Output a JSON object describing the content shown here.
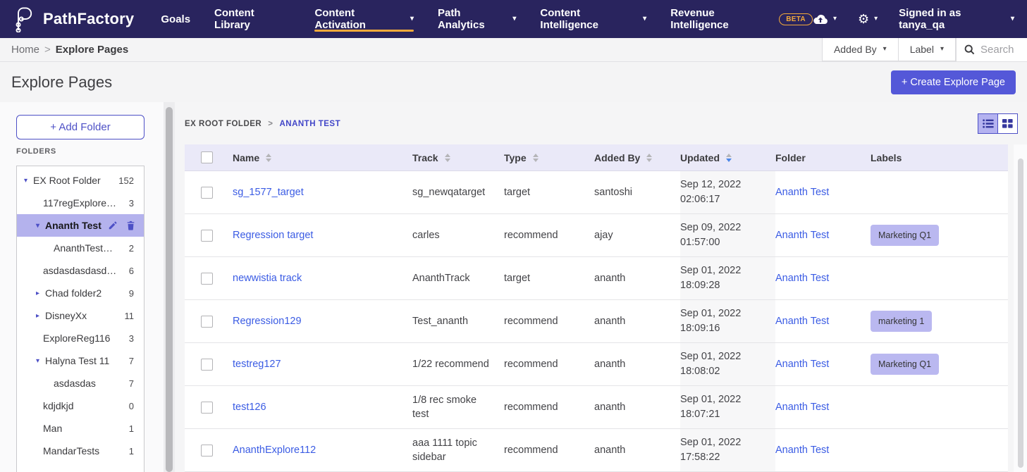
{
  "navbar": {
    "brand": "PathFactory",
    "items": [
      {
        "label": "Goals",
        "caret": false,
        "active": false,
        "badge": null
      },
      {
        "label": "Content Library",
        "caret": false,
        "active": false,
        "badge": null
      },
      {
        "label": "Content Activation",
        "caret": true,
        "active": true,
        "badge": null
      },
      {
        "label": "Path Analytics",
        "caret": true,
        "active": false,
        "badge": null
      },
      {
        "label": "Content Intelligence",
        "caret": true,
        "active": false,
        "badge": null
      },
      {
        "label": "Revenue Intelligence",
        "caret": false,
        "active": false,
        "badge": "BETA"
      }
    ],
    "icons": [
      "cloud-upload-icon",
      "gear-icon"
    ],
    "signed_in": "Signed in as tanya_qa"
  },
  "breadcrumb_bar": {
    "home": "Home",
    "separator": ">",
    "current": "Explore Pages",
    "filters": {
      "added_by": "Added By",
      "label": "Label"
    },
    "search_placeholder": "Search"
  },
  "page_header": {
    "title": "Explore Pages",
    "create_button": "+ Create Explore Page"
  },
  "sidebar": {
    "add_folder": "+ Add Folder",
    "section_label": "FOLDERS",
    "folders": [
      {
        "label": "EX Root Folder",
        "count": "152",
        "level": 1,
        "arrow": "down",
        "selected": false
      },
      {
        "label": "117regExplore…",
        "count": "3",
        "level": 2,
        "arrow": null,
        "selected": false
      },
      {
        "label": "Ananth Test",
        "count": "",
        "level": 2,
        "arrow": "down",
        "selected": true
      },
      {
        "label": "AnanthTest…",
        "count": "2",
        "level": 3,
        "arrow": null,
        "selected": false
      },
      {
        "label": "asdasdasdasd…",
        "count": "6",
        "level": 2,
        "arrow": null,
        "selected": false
      },
      {
        "label": "Chad folder2",
        "count": "9",
        "level": 2,
        "arrow": "right",
        "selected": false
      },
      {
        "label": "DisneyXx",
        "count": "11",
        "level": 2,
        "arrow": "right",
        "selected": false
      },
      {
        "label": "ExploreReg116",
        "count": "3",
        "level": 2,
        "arrow": null,
        "selected": false
      },
      {
        "label": "Halyna Test 11",
        "count": "7",
        "level": 2,
        "arrow": "down",
        "selected": false
      },
      {
        "label": "asdasdas",
        "count": "7",
        "level": 3,
        "arrow": null,
        "selected": false
      },
      {
        "label": "kdjdkjd",
        "count": "0",
        "level": 2,
        "arrow": null,
        "selected": false
      },
      {
        "label": "Man",
        "count": "1",
        "level": 2,
        "arrow": null,
        "selected": false
      },
      {
        "label": "MandarTests",
        "count": "1",
        "level": 2,
        "arrow": null,
        "selected": false
      }
    ]
  },
  "main": {
    "crumbs": {
      "root": "EX ROOT FOLDER",
      "separator": ">",
      "current": "ANANTH TEST"
    },
    "view_toggle": {
      "list_active": true,
      "grid_active": false
    },
    "table": {
      "columns": [
        {
          "label": "Name",
          "sortable": true,
          "sort": null
        },
        {
          "label": "Track",
          "sortable": true,
          "sort": null
        },
        {
          "label": "Type",
          "sortable": true,
          "sort": null
        },
        {
          "label": "Added By",
          "sortable": true,
          "sort": null
        },
        {
          "label": "Updated",
          "sortable": true,
          "sort": "desc"
        },
        {
          "label": "Folder",
          "sortable": false,
          "sort": null
        },
        {
          "label": "Labels",
          "sortable": false,
          "sort": null
        }
      ],
      "rows": [
        {
          "name": "sg_1577_target",
          "track": "sg_newqatarget",
          "type": "target",
          "added_by": "santoshi",
          "updated_date": "Sep 12, 2022",
          "updated_time": "02:06:17",
          "folder": "Ananth Test",
          "label": null
        },
        {
          "name": "Regression target",
          "track": "carles",
          "type": "recommend",
          "added_by": "ajay",
          "updated_date": "Sep 09, 2022",
          "updated_time": "01:57:00",
          "folder": "Ananth Test",
          "label": "Marketing Q1"
        },
        {
          "name": "newwistia track",
          "track": "AnanthTrack",
          "type": "target",
          "added_by": "ananth",
          "updated_date": "Sep 01, 2022",
          "updated_time": "18:09:28",
          "folder": "Ananth Test",
          "label": null
        },
        {
          "name": "Regression129",
          "track": "Test_ananth",
          "type": "recommend",
          "added_by": "ananth",
          "updated_date": "Sep 01, 2022",
          "updated_time": "18:09:16",
          "folder": "Ananth Test",
          "label": "marketing 1"
        },
        {
          "name": "testreg127",
          "track": "1/22 recommend",
          "type": "recommend",
          "added_by": "ananth",
          "updated_date": "Sep 01, 2022",
          "updated_time": "18:08:02",
          "folder": "Ananth Test",
          "label": "Marketing Q1"
        },
        {
          "name": "test126",
          "track": "1/8 rec smoke test",
          "type": "recommend",
          "added_by": "ananth",
          "updated_date": "Sep 01, 2022",
          "updated_time": "18:07:21",
          "folder": "Ananth Test",
          "label": null
        },
        {
          "name": "AnanthExplore112",
          "track": "aaa 1111 topic sidebar",
          "type": "recommend",
          "added_by": "ananth",
          "updated_date": "Sep 01, 2022",
          "updated_time": "17:58:22",
          "folder": "Ananth Test",
          "label": null
        }
      ]
    }
  },
  "colors": {
    "navbar_bg": "#29245e",
    "accent_yellow": "#f2a93b",
    "accent_indigo": "#4d50c6",
    "button_indigo": "#5458d8",
    "link_blue": "#3b5ce4",
    "selected_folder_bg": "#b4b2ed",
    "table_header_bg": "#eae9f8",
    "label_pill_bg": "#bab8f0",
    "updated_cell_bg": "#f7f7f8"
  }
}
